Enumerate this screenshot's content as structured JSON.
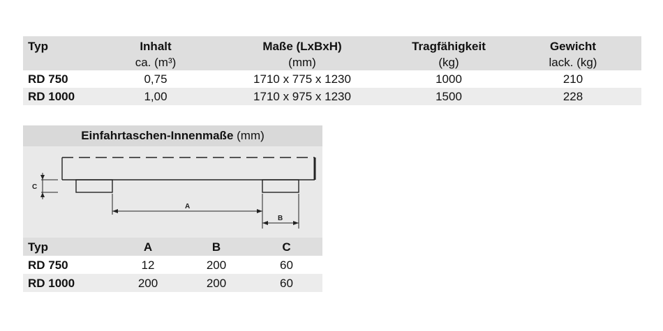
{
  "main_table": {
    "headers": {
      "typ": "Typ",
      "inhalt": "Inhalt",
      "inhalt_unit": "ca. (m³)",
      "masse": "Maße (LxBxH)",
      "masse_unit": "(mm)",
      "tragfaehigkeit": "Tragfähigkeit",
      "tragfaehigkeit_unit": "(kg)",
      "gewicht": "Gewicht",
      "gewicht_unit": "lack. (kg)"
    },
    "rows": [
      {
        "typ": "RD 750",
        "inhalt": "0,75",
        "masse": "1710 x 775 x 1230",
        "tragfaehigkeit": "1000",
        "gewicht": "210"
      },
      {
        "typ": "RD 1000",
        "inhalt": "1,00",
        "masse": "1710 x 975 x 1230",
        "tragfaehigkeit": "1500",
        "gewicht": "228"
      }
    ]
  },
  "dims_panel": {
    "title_bold": "Einfahrtaschen-Innenmaße",
    "title_unit": "(mm)",
    "diagram_labels": {
      "a": "A",
      "b": "B",
      "c": "C"
    }
  },
  "small_table": {
    "headers": {
      "typ": "Typ",
      "a": "A",
      "b": "B",
      "c": "C"
    },
    "rows": [
      {
        "typ": "RD 750",
        "a": "12",
        "b": "200",
        "c": "60"
      },
      {
        "typ": "RD 1000",
        "a": "200",
        "b": "200",
        "c": "60"
      }
    ]
  }
}
